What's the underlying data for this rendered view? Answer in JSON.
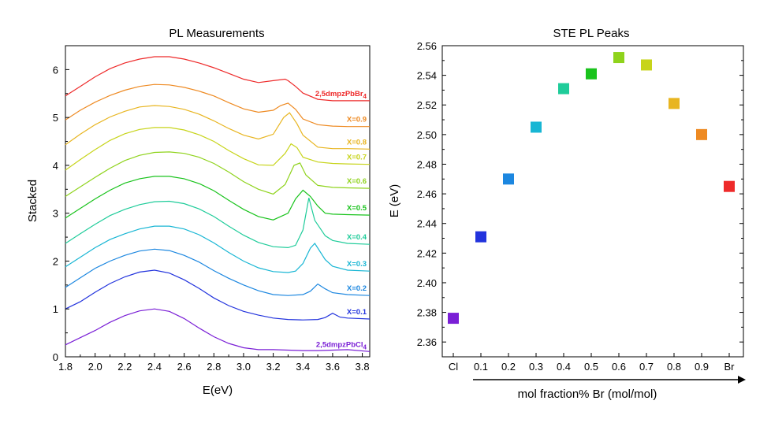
{
  "left_panel": {
    "title": "PL Measurements",
    "xlabel": "E(eV)",
    "ylabel": "Stacked"
  },
  "right_panel": {
    "title": "STE PL Peaks",
    "xlabel": "mol fraction% Br (mol/mol)",
    "ylabel": "E (eV)"
  },
  "chart_data": [
    {
      "type": "line",
      "title": "PL Measurements",
      "xlabel": "E(eV)",
      "ylabel": "Stacked",
      "xlim": [
        1.8,
        3.85
      ],
      "ylim": [
        0,
        6.5
      ],
      "xticks": [
        "1.8",
        "2.0",
        "2.2",
        "2.4",
        "2.6",
        "2.8",
        "3.0",
        "3.2",
        "3.4",
        "3.6",
        "3.8"
      ],
      "yticks": [
        "0",
        "1",
        "2",
        "3",
        "4",
        "5",
        "6"
      ],
      "grid": false,
      "series": [
        {
          "name": "2,5dmpzPbCl4",
          "label_main": "2,5dmpzPbCl",
          "label_sub": "4",
          "color": "#7a1fd6",
          "offset": 0.0,
          "x": [
            1.8,
            1.9,
            2.0,
            2.1,
            2.2,
            2.3,
            2.4,
            2.5,
            2.6,
            2.7,
            2.8,
            2.9,
            3.0,
            3.1,
            3.2,
            3.3,
            3.4,
            3.5,
            3.6,
            3.7,
            3.85
          ],
          "y": [
            0.25,
            0.4,
            0.55,
            0.72,
            0.86,
            0.96,
            1.0,
            0.95,
            0.8,
            0.6,
            0.42,
            0.28,
            0.19,
            0.15,
            0.15,
            0.14,
            0.13,
            0.13,
            0.14,
            0.15,
            0.11
          ]
        },
        {
          "name": "X=0.1",
          "color": "#2233dd",
          "offset": 0.65,
          "x": [
            1.8,
            1.9,
            2.0,
            2.1,
            2.2,
            2.3,
            2.4,
            2.5,
            2.6,
            2.7,
            2.8,
            2.9,
            3.0,
            3.1,
            3.2,
            3.3,
            3.4,
            3.5,
            3.55,
            3.6,
            3.65,
            3.7,
            3.85
          ],
          "y": [
            0.35,
            0.5,
            0.7,
            0.88,
            1.02,
            1.12,
            1.16,
            1.1,
            0.96,
            0.78,
            0.58,
            0.42,
            0.3,
            0.22,
            0.16,
            0.13,
            0.12,
            0.13,
            0.17,
            0.26,
            0.18,
            0.16,
            0.14
          ]
        },
        {
          "name": "X=0.2",
          "color": "#1c87e0",
          "offset": 1.2,
          "x": [
            1.8,
            1.9,
            2.0,
            2.1,
            2.2,
            2.3,
            2.4,
            2.5,
            2.6,
            2.7,
            2.8,
            2.9,
            3.0,
            3.1,
            3.2,
            3.3,
            3.4,
            3.45,
            3.5,
            3.55,
            3.6,
            3.7,
            3.85
          ],
          "y": [
            0.25,
            0.45,
            0.65,
            0.8,
            0.92,
            1.01,
            1.05,
            1.02,
            0.92,
            0.78,
            0.6,
            0.44,
            0.3,
            0.18,
            0.1,
            0.08,
            0.1,
            0.17,
            0.32,
            0.22,
            0.14,
            0.1,
            0.08
          ]
        },
        {
          "name": "X=0.3",
          "color": "#18b6d4",
          "offset": 1.65,
          "x": [
            1.8,
            1.9,
            2.0,
            2.1,
            2.2,
            2.3,
            2.4,
            2.5,
            2.6,
            2.7,
            2.8,
            2.9,
            3.0,
            3.1,
            3.2,
            3.3,
            3.35,
            3.4,
            3.45,
            3.48,
            3.55,
            3.6,
            3.7,
            3.85
          ],
          "y": [
            0.23,
            0.43,
            0.63,
            0.8,
            0.92,
            1.02,
            1.08,
            1.08,
            1.02,
            0.9,
            0.73,
            0.53,
            0.35,
            0.21,
            0.13,
            0.11,
            0.14,
            0.3,
            0.62,
            0.72,
            0.38,
            0.24,
            0.16,
            0.14
          ]
        },
        {
          "name": "X=0.4",
          "color": "#1fcc9a",
          "offset": 2.15,
          "x": [
            1.8,
            1.9,
            2.0,
            2.1,
            2.2,
            2.3,
            2.4,
            2.5,
            2.6,
            2.7,
            2.8,
            2.9,
            3.0,
            3.1,
            3.2,
            3.3,
            3.35,
            3.4,
            3.44,
            3.48,
            3.55,
            3.6,
            3.7,
            3.85
          ],
          "y": [
            0.22,
            0.42,
            0.62,
            0.8,
            0.93,
            1.03,
            1.09,
            1.1,
            1.05,
            0.94,
            0.78,
            0.58,
            0.39,
            0.24,
            0.15,
            0.13,
            0.18,
            0.5,
            1.17,
            0.7,
            0.38,
            0.28,
            0.22,
            0.2
          ]
        },
        {
          "name": "X=0.5",
          "color": "#19c31c",
          "offset": 2.7,
          "x": [
            1.8,
            1.9,
            2.0,
            2.1,
            2.2,
            2.3,
            2.4,
            2.5,
            2.6,
            2.7,
            2.8,
            2.9,
            3.0,
            3.1,
            3.2,
            3.3,
            3.35,
            3.4,
            3.45,
            3.5,
            3.55,
            3.6,
            3.7,
            3.85
          ],
          "y": [
            0.2,
            0.4,
            0.6,
            0.78,
            0.93,
            1.02,
            1.07,
            1.07,
            1.02,
            0.92,
            0.77,
            0.57,
            0.38,
            0.23,
            0.16,
            0.3,
            0.6,
            0.78,
            0.65,
            0.45,
            0.3,
            0.28,
            0.27,
            0.26
          ]
        },
        {
          "name": "X=0.6",
          "color": "#8fd31c",
          "offset": 3.2,
          "x": [
            1.8,
            1.9,
            2.0,
            2.1,
            2.2,
            2.3,
            2.4,
            2.5,
            2.6,
            2.7,
            2.8,
            2.9,
            3.0,
            3.1,
            3.2,
            3.28,
            3.34,
            3.38,
            3.42,
            3.5,
            3.6,
            3.7,
            3.85
          ],
          "y": [
            0.15,
            0.35,
            0.55,
            0.74,
            0.9,
            1.01,
            1.07,
            1.08,
            1.05,
            0.97,
            0.84,
            0.66,
            0.46,
            0.3,
            0.2,
            0.4,
            0.8,
            0.85,
            0.6,
            0.38,
            0.34,
            0.33,
            0.32
          ]
        },
        {
          "name": "X=0.7",
          "color": "#c7d41a",
          "offset": 3.75,
          "x": [
            1.8,
            1.9,
            2.0,
            2.1,
            2.2,
            2.3,
            2.4,
            2.5,
            2.6,
            2.7,
            2.8,
            2.9,
            3.0,
            3.1,
            3.2,
            3.28,
            3.32,
            3.36,
            3.4,
            3.5,
            3.6,
            3.7,
            3.85
          ],
          "y": [
            0.15,
            0.37,
            0.58,
            0.77,
            0.91,
            1.0,
            1.04,
            1.04,
            0.99,
            0.89,
            0.75,
            0.56,
            0.39,
            0.26,
            0.25,
            0.5,
            0.7,
            0.62,
            0.42,
            0.32,
            0.29,
            0.28,
            0.27
          ]
        },
        {
          "name": "X=0.8",
          "color": "#e8b520",
          "offset": 4.25,
          "x": [
            1.8,
            1.9,
            2.0,
            2.1,
            2.2,
            2.3,
            2.4,
            2.5,
            2.6,
            2.7,
            2.8,
            2.9,
            3.0,
            3.1,
            3.2,
            3.27,
            3.31,
            3.36,
            3.4,
            3.5,
            3.6,
            3.7,
            3.85
          ],
          "y": [
            0.18,
            0.4,
            0.6,
            0.76,
            0.88,
            0.97,
            1.0,
            0.98,
            0.92,
            0.82,
            0.68,
            0.52,
            0.38,
            0.3,
            0.4,
            0.75,
            0.85,
            0.62,
            0.38,
            0.13,
            0.1,
            0.1,
            0.09
          ]
        },
        {
          "name": "X=0.9",
          "color": "#ee8a22",
          "offset": 4.75,
          "x": [
            1.8,
            1.9,
            2.0,
            2.1,
            2.2,
            2.3,
            2.4,
            2.5,
            2.6,
            2.7,
            2.8,
            2.9,
            3.0,
            3.1,
            3.2,
            3.25,
            3.3,
            3.35,
            3.4,
            3.5,
            3.6,
            3.7,
            3.85
          ],
          "y": [
            0.2,
            0.4,
            0.57,
            0.71,
            0.82,
            0.9,
            0.94,
            0.93,
            0.88,
            0.8,
            0.7,
            0.56,
            0.43,
            0.36,
            0.4,
            0.5,
            0.55,
            0.42,
            0.22,
            0.1,
            0.07,
            0.06,
            0.06
          ]
        },
        {
          "name": "2,5dmpzPbBr4",
          "label_main": "2,5dmpzPbBr",
          "label_sub": "4",
          "color": "#ee2a2a",
          "offset": 5.35,
          "x": [
            1.8,
            1.9,
            2.0,
            2.1,
            2.2,
            2.3,
            2.4,
            2.5,
            2.6,
            2.7,
            2.8,
            2.9,
            3.0,
            3.1,
            3.2,
            3.28,
            3.3,
            3.35,
            3.4,
            3.5,
            3.6,
            3.7,
            3.85
          ],
          "y": [
            0.1,
            0.3,
            0.5,
            0.67,
            0.79,
            0.87,
            0.92,
            0.92,
            0.87,
            0.79,
            0.69,
            0.57,
            0.45,
            0.38,
            0.42,
            0.45,
            0.42,
            0.3,
            0.16,
            0.03,
            0.0,
            0.0,
            0.0
          ]
        }
      ]
    },
    {
      "type": "scatter",
      "title": "STE PL Peaks",
      "xlabel": "mol fraction% Br (mol/mol)",
      "ylabel": "E (eV)",
      "categories": [
        "Cl",
        "0.1",
        "0.2",
        "0.3",
        "0.4",
        "0.5",
        "0.6",
        "0.7",
        "0.8",
        "0.9",
        "Br"
      ],
      "ylim": [
        2.35,
        2.56
      ],
      "yticks": [
        "2.36",
        "2.38",
        "2.40",
        "2.42",
        "2.44",
        "2.46",
        "2.48",
        "2.50",
        "2.52",
        "2.54",
        "2.56"
      ],
      "grid": false,
      "points": [
        {
          "category": "Cl",
          "value": 2.376,
          "color": "#7a1fd6"
        },
        {
          "category": "0.1",
          "value": 2.431,
          "color": "#2233dd"
        },
        {
          "category": "0.2",
          "value": 2.47,
          "color": "#1c87e0"
        },
        {
          "category": "0.3",
          "value": 2.505,
          "color": "#18b6d4"
        },
        {
          "category": "0.4",
          "value": 2.531,
          "color": "#1fcc9a"
        },
        {
          "category": "0.5",
          "value": 2.541,
          "color": "#19c31c"
        },
        {
          "category": "0.6",
          "value": 2.552,
          "color": "#8fd31c"
        },
        {
          "category": "0.7",
          "value": 2.547,
          "color": "#c7d41a"
        },
        {
          "category": "0.8",
          "value": 2.521,
          "color": "#e8b520"
        },
        {
          "category": "0.9",
          "value": 2.5,
          "color": "#ee8a22"
        },
        {
          "category": "Br",
          "value": 2.465,
          "color": "#ee2a2a"
        }
      ]
    }
  ]
}
